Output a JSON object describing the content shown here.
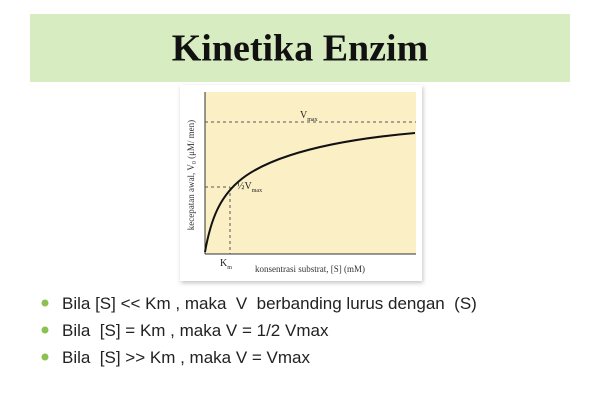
{
  "header": {
    "title": "Kinetika Enzim"
  },
  "figure": {
    "y_axis_label": {
      "main": "kecepatan awal, V",
      "subscript": "0",
      "unit": " (μM/ men)"
    },
    "vmax_label": {
      "main": "V",
      "subscript": "max"
    },
    "half_vmax_label": {
      "fraction": "½",
      "main": "V",
      "subscript": "max"
    },
    "km_label": {
      "main": "K",
      "subscript": "m"
    },
    "x_axis_label": "konsentrasi substrat, [S] (mM)"
  },
  "bullets": [
    "Bila [S] << Km , maka  V  berbanding lurus dengan  (S)",
    "Bila  [S] = Km , maka V = 1/2 Vmax",
    "Bila  [S] >> Km , maka V = Vmax"
  ]
}
